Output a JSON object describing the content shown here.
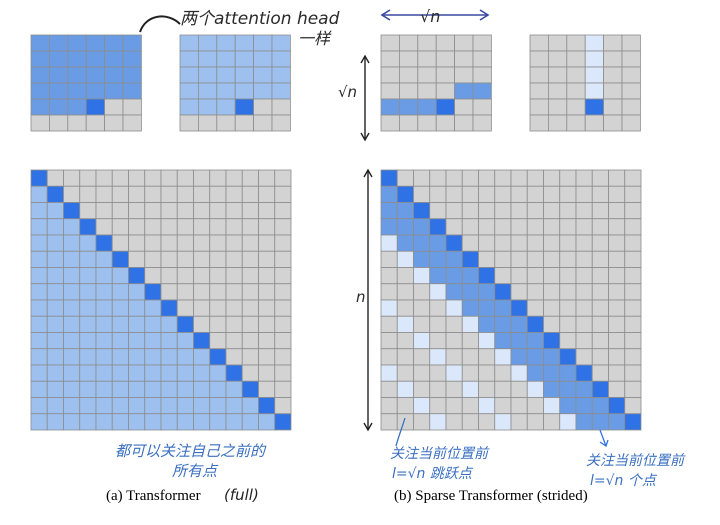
{
  "colors": {
    "empty": "#d3d3d3",
    "attended": "#6a9ce6",
    "attended_light": "#9dc0ef",
    "current": "#2f72e6",
    "faint": "#dbe8fb",
    "grid_line": "#8d8d8d",
    "handwriting_blue": "#3a6fc0"
  },
  "annotations": {
    "top_note": "两个attention head",
    "top_note_line2": "一样",
    "sqrt_n_top": "√n",
    "sqrt_n_side": "√n",
    "n_side": "n",
    "full_note_line1": "都可以关注自己之前的",
    "full_note_line2": "所有点",
    "strided_note1_line1": "关注当前位置前",
    "strided_note1_line2": "l=√n 跳跃点",
    "strided_note2_line1": "关注当前位置前",
    "strided_note2_line2": "l=√n 个点"
  },
  "captions": {
    "a_label": "(a) Transformer",
    "a_hand": "(full)",
    "b_label": "(b) Sparse Transformer (strided)"
  },
  "diagram": {
    "small_grid_size": 6,
    "big_grid_size": 16,
    "stride": 4,
    "small_grids": [
      {
        "name": "full-head-1",
        "current_row": 4,
        "current_col": 3
      },
      {
        "name": "full-head-2",
        "current_row": 4,
        "current_col": 3
      },
      {
        "name": "strided-head-1-local",
        "current_row": 4,
        "current_col": 3
      },
      {
        "name": "strided-head-2-stride",
        "current_row": 4,
        "current_col": 3
      }
    ]
  }
}
